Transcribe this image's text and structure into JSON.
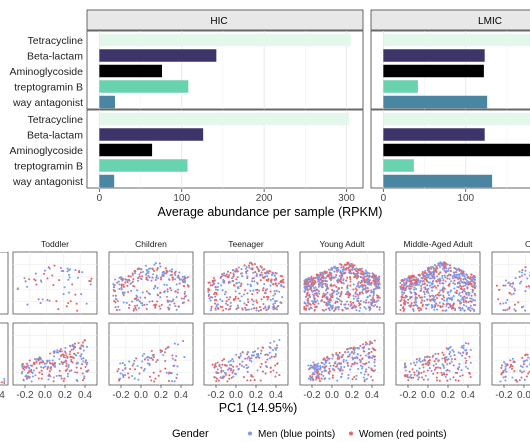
{
  "chart_data": [
    {
      "type": "bar",
      "orientation": "horizontal",
      "facets": [
        "HIC",
        "LMIC"
      ],
      "categories": [
        "Tetracycline",
        "Beta-lactam",
        "Aminoglycoside",
        "Streptogramin B",
        "Pathway antagonist"
      ],
      "category_labels_visible": [
        "Tetracycline",
        "Beta-lactam",
        "Aminoglycoside",
        "treptogramin B",
        "way antagonist"
      ],
      "category_colors": [
        "#e3f8ea",
        "#3d3469",
        "#000000",
        "#69d2ae",
        "#4a86a2"
      ],
      "panels": [
        {
          "facet": "HIC",
          "row": 1,
          "values": [
            305,
            142,
            76,
            108,
            19
          ]
        },
        {
          "facet": "LMIC",
          "row": 1,
          "values": [
            null,
            123,
            122,
            42,
            126
          ]
        },
        {
          "facet": "HIC",
          "row": 2,
          "values": [
            303,
            126,
            64,
            107,
            18
          ]
        },
        {
          "facet": "LMIC",
          "row": 2,
          "values": [
            null,
            123,
            null,
            37,
            132
          ]
        }
      ],
      "xlabel": "Average abundance per sample (RPKM)",
      "x_ticks": {
        "HIC": [
          "0",
          "100",
          "200",
          "300"
        ],
        "LMIC": [
          "0",
          "100"
        ]
      },
      "xlim": [
        -15,
        320
      ],
      "grid": true
    },
    {
      "type": "scatter",
      "facets_row1": [
        "Toddler",
        "Children",
        "Teenager",
        "Young Adult",
        "Middle-Aged Adult",
        "Olde"
      ],
      "x_ticks": [
        "-0.2",
        "0.0",
        "0.2",
        "0.4"
      ],
      "left_partial_tick": "4",
      "xlabel": "PC1 (14.95%)",
      "legend": {
        "title": "Gender",
        "items": [
          {
            "label": "Men (blue points)",
            "color": "#7b9cf0"
          },
          {
            "label": "Women (red points)",
            "color": "#e0696b"
          }
        ],
        "position": "bottom"
      },
      "series": [
        {
          "name": "Men (blue points)"
        },
        {
          "name": "Women (red points)"
        }
      ],
      "grid": true
    }
  ]
}
